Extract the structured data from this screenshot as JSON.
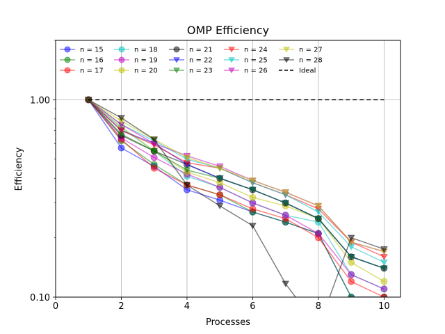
{
  "chart_data": {
    "type": "line",
    "title": "OMP Efficiency",
    "xlabel": "Processes",
    "ylabel": "Efficiency",
    "xlim": [
      0,
      10.5
    ],
    "ylim": [
      0.1,
      2.0
    ],
    "yscale": "log",
    "xticks": [
      0,
      2,
      4,
      6,
      8,
      10
    ],
    "xtick_labels": [
      "0",
      "2",
      "4",
      "6",
      "8",
      "10"
    ],
    "yticks": [
      0.1,
      1.0
    ],
    "ytick_labels": [
      "0.10",
      "1.00"
    ],
    "grid": "vertical lines at x ticks and horizontal line at y = 1.00",
    "legend": "top, 6 columns",
    "x": [
      1,
      2,
      3,
      4,
      5,
      6,
      7,
      8,
      9,
      10
    ],
    "series": [
      {
        "name": "n = 15",
        "color": "#0000ff",
        "marker": "circle",
        "values": [
          1.0,
          0.57,
          0.46,
          0.35,
          0.31,
          0.27,
          0.24,
          0.21,
          0.1,
          0.1
        ]
      },
      {
        "name": "n = 16",
        "color": "#008000",
        "marker": "circle",
        "values": [
          1.0,
          0.62,
          0.47,
          0.37,
          0.33,
          0.27,
          0.24,
          0.21,
          0.1,
          0.1
        ]
      },
      {
        "name": "n = 17",
        "color": "#ff0000",
        "marker": "circle",
        "values": [
          1.0,
          0.63,
          0.45,
          0.37,
          0.33,
          0.28,
          0.25,
          0.2,
          0.12,
          0.1
        ]
      },
      {
        "name": "n = 18",
        "color": "#00bfbf",
        "marker": "circle",
        "values": [
          1.0,
          0.72,
          0.55,
          0.41,
          0.36,
          0.3,
          0.26,
          0.24,
          0.13,
          0.11
        ]
      },
      {
        "name": "n = 19",
        "color": "#bf00bf",
        "marker": "circle",
        "values": [
          1.0,
          0.64,
          0.51,
          0.42,
          0.36,
          0.3,
          0.26,
          0.21,
          0.13,
          0.11
        ]
      },
      {
        "name": "n = 20",
        "color": "#bfbf00",
        "marker": "circle",
        "values": [
          1.0,
          0.73,
          0.55,
          0.43,
          0.38,
          0.32,
          0.29,
          0.25,
          0.15,
          0.12
        ]
      },
      {
        "name": "n = 21",
        "color": "#000000",
        "marker": "circle",
        "values": [
          1.0,
          0.66,
          0.55,
          0.47,
          0.4,
          0.35,
          0.3,
          0.25,
          0.16,
          0.14
        ]
      },
      {
        "name": "n = 22",
        "color": "#0000ff",
        "marker": "triangle-down",
        "values": [
          1.0,
          0.7,
          0.6,
          0.47,
          0.4,
          0.35,
          0.3,
          0.25,
          0.16,
          0.14
        ]
      },
      {
        "name": "n = 23",
        "color": "#008000",
        "marker": "triangle-down",
        "values": [
          1.0,
          0.67,
          0.55,
          0.44,
          0.4,
          0.35,
          0.3,
          0.25,
          0.16,
          0.14
        ]
      },
      {
        "name": "n = 24",
        "color": "#ff0000",
        "marker": "triangle-down",
        "values": [
          1.0,
          0.7,
          0.59,
          0.48,
          0.45,
          0.38,
          0.33,
          0.28,
          0.19,
          0.16
        ]
      },
      {
        "name": "n = 25",
        "color": "#00bfbf",
        "marker": "triangle-down",
        "values": [
          1.0,
          0.75,
          0.62,
          0.5,
          0.45,
          0.38,
          0.33,
          0.27,
          0.18,
          0.15
        ]
      },
      {
        "name": "n = 26",
        "color": "#bf00bf",
        "marker": "triangle-down",
        "values": [
          1.0,
          0.75,
          0.6,
          0.52,
          0.46,
          0.39,
          0.34,
          0.29,
          0.19,
          0.17
        ]
      },
      {
        "name": "n = 27",
        "color": "#bfbf00",
        "marker": "triangle-down",
        "values": [
          1.0,
          0.78,
          0.63,
          0.51,
          0.45,
          0.39,
          0.34,
          0.29,
          0.19,
          0.17
        ]
      },
      {
        "name": "n = 28",
        "color": "#000000",
        "marker": "triangle-down",
        "values": [
          1.0,
          0.81,
          0.63,
          0.37,
          0.29,
          0.23,
          0.117,
          0.07,
          0.2,
          0.175
        ]
      },
      {
        "name": "Ideal",
        "color": "#000000",
        "marker": "none",
        "dashed": true,
        "values": [
          1.0,
          1.0,
          1.0,
          1.0,
          1.0,
          1.0,
          1.0,
          1.0,
          1.0,
          1.0
        ]
      }
    ]
  }
}
